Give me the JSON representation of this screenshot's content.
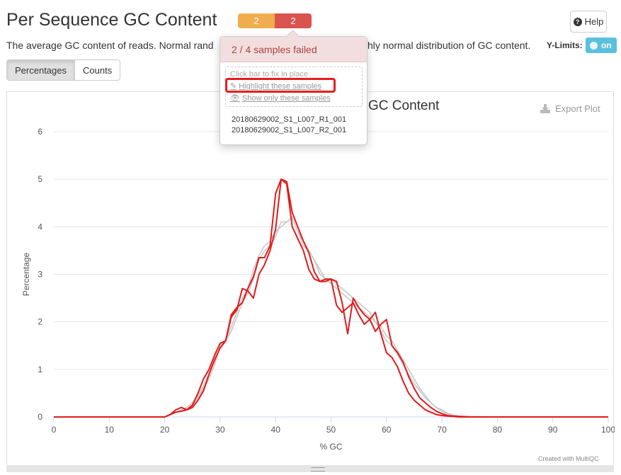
{
  "header": {
    "title": "Per Sequence GC Content",
    "badge_warn": "2",
    "badge_fail": "2",
    "help_label": "Help"
  },
  "description": {
    "text_left": "The average GC content of reads. Normal rand",
    "text_right": "hly normal distribution of GC content.",
    "ylimits_label": "Y-Limits:",
    "toggle_label": "on"
  },
  "tabs": {
    "percentages": "Percentages",
    "counts": "Counts"
  },
  "popover": {
    "header": "2 / 4 samples failed",
    "hint": "Click bar to fix in place",
    "highlight_link": "Highlight these samples",
    "show_only_link": "Show only these samples",
    "samples": [
      "20180629002_S1_L007_R1_001",
      "20180629002_S1_L007_R2_001"
    ]
  },
  "plot_ui": {
    "export_label": "Export Plot",
    "credit": "Created with MultiQC"
  },
  "colors": {
    "fail_line": "#e01b1b",
    "pass_line": "#c8c8c8",
    "warn_badge": "#f0ad4e",
    "fail_badge": "#d9534f",
    "toggle": "#5bc0de"
  },
  "chart_data": {
    "type": "line",
    "title": "GC Content",
    "xlabel": "% GC",
    "ylabel": "Percentage",
    "xlim": [
      0,
      100
    ],
    "ylim": [
      0,
      6
    ],
    "xticks": [
      0,
      10,
      20,
      30,
      40,
      50,
      60,
      70,
      80,
      90,
      100
    ],
    "yticks": [
      0,
      1,
      2,
      3,
      4,
      5,
      6
    ],
    "grid": true,
    "series": [
      {
        "status": "pass",
        "x": [
          0,
          20,
          22,
          24,
          25,
          26,
          27,
          28,
          29,
          30,
          31,
          32,
          33,
          34,
          35,
          36,
          37,
          38,
          39,
          40,
          41,
          42,
          43,
          44,
          45,
          46,
          47,
          48,
          49,
          50,
          51,
          52,
          53,
          54,
          55,
          56,
          57,
          58,
          59,
          60,
          61,
          62,
          63,
          64,
          65,
          66,
          67,
          68,
          69,
          70,
          71,
          72,
          73,
          75,
          80,
          100
        ],
        "y": [
          0,
          0,
          0.1,
          0.15,
          0.25,
          0.4,
          0.6,
          0.8,
          1.1,
          1.5,
          1.6,
          1.9,
          2.2,
          2.5,
          2.7,
          3.1,
          3.4,
          3.6,
          3.7,
          3.9,
          4.0,
          4.1,
          4.2,
          3.9,
          3.6,
          3.5,
          3.3,
          3.1,
          2.9,
          2.9,
          2.8,
          2.7,
          2.6,
          2.5,
          2.4,
          2.3,
          2.2,
          2.0,
          1.9,
          1.7,
          1.6,
          1.4,
          1.2,
          1.0,
          0.8,
          0.6,
          0.45,
          0.3,
          0.2,
          0.15,
          0.08,
          0.04,
          0.02,
          0.01,
          0,
          0
        ]
      },
      {
        "status": "pass",
        "x": [
          0,
          20,
          22,
          24,
          25,
          26,
          27,
          28,
          29,
          30,
          31,
          32,
          33,
          34,
          35,
          36,
          37,
          38,
          39,
          40,
          41,
          42,
          43,
          44,
          45,
          46,
          47,
          48,
          49,
          50,
          51,
          52,
          53,
          54,
          55,
          56,
          57,
          58,
          59,
          60,
          61,
          62,
          63,
          64,
          65,
          66,
          67,
          68,
          69,
          70,
          71,
          72,
          73,
          75,
          80,
          100
        ],
        "y": [
          0,
          0,
          0.1,
          0.2,
          0.3,
          0.45,
          0.65,
          0.9,
          1.2,
          1.45,
          1.6,
          1.8,
          2.1,
          2.4,
          2.6,
          2.9,
          3.3,
          3.5,
          3.6,
          3.8,
          4.1,
          4.1,
          4.2,
          3.9,
          3.7,
          3.5,
          3.3,
          3.0,
          2.9,
          2.8,
          2.7,
          2.6,
          2.5,
          2.4,
          2.3,
          2.2,
          2.1,
          2.0,
          1.8,
          1.6,
          1.5,
          1.3,
          1.1,
          0.9,
          0.7,
          0.55,
          0.4,
          0.3,
          0.2,
          0.12,
          0.06,
          0.03,
          0.02,
          0.01,
          0,
          0
        ]
      },
      {
        "status": "fail",
        "x": [
          0,
          20,
          21,
          22,
          23,
          24,
          25,
          26,
          27,
          28,
          29,
          30,
          31,
          32,
          33,
          34,
          35,
          36,
          37,
          38,
          39,
          40,
          41,
          42,
          43,
          44,
          45,
          46,
          47,
          48,
          49,
          50,
          51,
          52,
          53,
          54,
          55,
          56,
          57,
          58,
          59,
          60,
          61,
          62,
          63,
          64,
          65,
          66,
          67,
          68,
          69,
          70,
          71,
          72,
          73,
          75,
          80,
          100
        ],
        "y": [
          0,
          0,
          0.05,
          0.15,
          0.2,
          0.15,
          0.25,
          0.5,
          0.8,
          1.0,
          1.3,
          1.55,
          1.6,
          2.15,
          2.3,
          2.4,
          2.7,
          2.95,
          3.35,
          3.35,
          3.6,
          4.7,
          5.0,
          4.95,
          4.3,
          4.0,
          3.7,
          3.45,
          3.05,
          2.85,
          2.85,
          2.9,
          2.85,
          2.4,
          1.75,
          2.5,
          2.3,
          2.15,
          2.05,
          1.8,
          1.95,
          2.05,
          1.5,
          1.35,
          1.15,
          0.85,
          0.6,
          0.4,
          0.3,
          0.2,
          0.12,
          0.07,
          0.03,
          0.02,
          0.01,
          0,
          0,
          0
        ]
      },
      {
        "status": "fail",
        "x": [
          0,
          20,
          21,
          22,
          23,
          24,
          25,
          26,
          27,
          28,
          29,
          30,
          31,
          32,
          33,
          34,
          35,
          36,
          37,
          38,
          39,
          40,
          41,
          42,
          43,
          44,
          45,
          46,
          47,
          48,
          49,
          50,
          51,
          52,
          53,
          54,
          55,
          56,
          57,
          58,
          59,
          60,
          61,
          62,
          63,
          64,
          65,
          66,
          67,
          68,
          69,
          70,
          71,
          72,
          73,
          75,
          80,
          100
        ],
        "y": [
          0,
          0,
          0.05,
          0.1,
          0.12,
          0.15,
          0.2,
          0.35,
          0.55,
          0.9,
          1.2,
          1.45,
          1.6,
          2.1,
          2.25,
          2.7,
          2.65,
          2.5,
          3.0,
          3.2,
          3.5,
          3.95,
          5.0,
          4.9,
          4.0,
          3.75,
          3.5,
          3.1,
          2.9,
          2.85,
          2.9,
          2.9,
          2.35,
          2.2,
          2.3,
          2.4,
          2.15,
          1.95,
          2.05,
          2.2,
          1.75,
          1.35,
          1.25,
          1.05,
          0.75,
          0.5,
          0.35,
          0.25,
          0.15,
          0.1,
          0.05,
          0.03,
          0.02,
          0.01,
          0,
          0,
          0,
          0
        ]
      }
    ]
  }
}
